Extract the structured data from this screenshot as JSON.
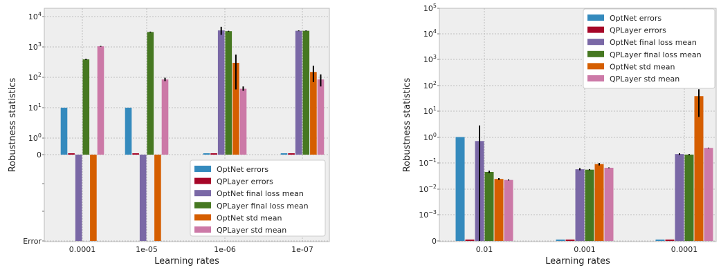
{
  "colors": {
    "plot_bg": "#eeeeee",
    "grid": "#b0b0b0",
    "axis": "#bcbcbc",
    "errorbar": "#000000"
  },
  "chart_data": [
    {
      "type": "bar",
      "xlabel": "Learning rates",
      "ylabel": "Robustness statistics",
      "categories": [
        "0.0001",
        "1e-05",
        "1e-06",
        "1e-07"
      ],
      "y_scale": "symlog (linthresh 1) with an \"Error\" region below 0",
      "y_tick_labels": [
        "Error",
        "0",
        "10^0",
        "10^1",
        "10^2",
        "10^3",
        "10^4"
      ],
      "ylim": [
        0,
        10000
      ],
      "grid": true,
      "legend_position": "lower-right",
      "error_marker": "Error",
      "series": [
        {
          "name": "OptNet errors",
          "color": "#348abd",
          "values": [
            10,
            10,
            0,
            0
          ]
        },
        {
          "name": "QPLayer errors",
          "color": "#a60628",
          "values": [
            0,
            0,
            0,
            0
          ]
        },
        {
          "name": "OptNet final loss mean",
          "color": "#7a68a6",
          "values": [
            "Error",
            "Error",
            3500,
            3400
          ],
          "errors": [
            null,
            null,
            [
              2500,
              4600
            ],
            [
              3300,
              3500
            ]
          ]
        },
        {
          "name": "QPLayer final loss mean",
          "color": "#467821",
          "values": [
            390,
            3100,
            3300,
            3400
          ],
          "errors": [
            [
              370,
              410
            ],
            [
              3000,
              3200
            ],
            [
              3200,
              3400
            ],
            [
              3300,
              3500
            ]
          ]
        },
        {
          "name": "OptNet std mean",
          "color": "#d55e00",
          "values": [
            "Error",
            "Error",
            300,
            150
          ],
          "errors": [
            null,
            null,
            [
              40,
              560
            ],
            [
              70,
              240
            ]
          ]
        },
        {
          "name": "QPLayer std mean",
          "color": "#cc79a7",
          "values": [
            1050,
            85,
            42,
            85
          ],
          "errors": [
            [
              1020,
              1080
            ],
            [
              75,
              97
            ],
            [
              36,
              50
            ],
            [
              50,
              125
            ]
          ]
        }
      ]
    },
    {
      "type": "bar",
      "xlabel": "Learning rates",
      "ylabel": "Robustness statistics",
      "categories": [
        "0.01",
        "0.001",
        "0.0001"
      ],
      "y_scale": "symlog (linthresh 0.001)",
      "y_tick_labels": [
        "0",
        "10^-3",
        "10^-2",
        "10^-1",
        "10^0",
        "10^1",
        "10^2",
        "10^3",
        "10^4",
        "10^5"
      ],
      "ylim": [
        0,
        100000
      ],
      "grid": true,
      "legend_position": "upper-right",
      "series": [
        {
          "name": "OptNet errors",
          "color": "#348abd",
          "values": [
            1,
            0,
            0
          ]
        },
        {
          "name": "QPLayer errors",
          "color": "#a60628",
          "values": [
            0,
            0,
            0
          ]
        },
        {
          "name": "OptNet final loss mean",
          "color": "#7a68a6",
          "values": [
            0.7,
            0.057,
            0.22
          ],
          "errors": [
            [
              0,
              2.8
            ],
            [
              0.052,
              0.063
            ],
            [
              0.205,
              0.235
            ]
          ]
        },
        {
          "name": "QPLayer final loss mean",
          "color": "#467821",
          "values": [
            0.045,
            0.055,
            0.21
          ],
          "errors": [
            [
              0.04,
              0.05
            ],
            [
              0.052,
              0.058
            ],
            [
              0.2,
              0.22
            ]
          ]
        },
        {
          "name": "OptNet std mean",
          "color": "#d55e00",
          "values": [
            0.024,
            0.09,
            38
          ],
          "errors": [
            [
              0.022,
              0.026
            ],
            [
              0.08,
              0.1
            ],
            [
              6,
              70
            ]
          ]
        },
        {
          "name": "QPLayer std mean",
          "color": "#cc79a7",
          "values": [
            0.022,
            0.065,
            0.38
          ],
          "errors": [
            [
              0.021,
              0.023
            ],
            [
              0.063,
              0.067
            ],
            [
              0.37,
              0.39
            ]
          ]
        }
      ]
    }
  ]
}
